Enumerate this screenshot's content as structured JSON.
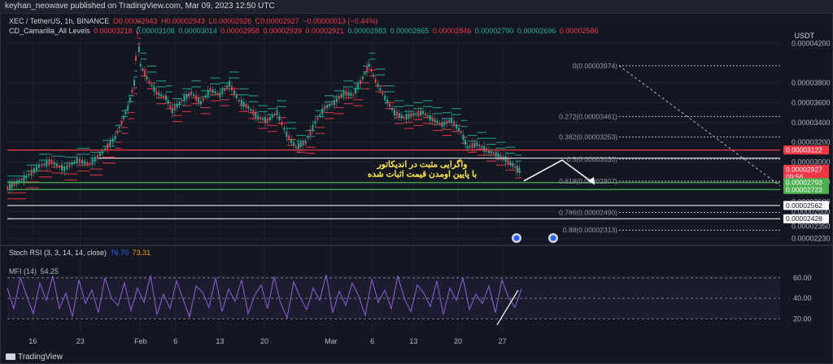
{
  "header": {
    "publish_line": "keyhan_neowave published on TradingView.com, Mar 09, 2023 12:50 UTC"
  },
  "symbol_legend": {
    "title": "XEC / TetherUS, 1h, BINANCE",
    "open_label": "O",
    "open": "0.00002943",
    "high_label": "H",
    "high": "0.00002943",
    "low_label": "L",
    "low": "0.00002926",
    "close_label": "C",
    "close": "0.00002927",
    "change": "−0.00000013 (−0.44%)"
  },
  "indicator_legend": {
    "name": "CD_Camarilla_All Levels",
    "values": [
      "0.00003218",
      "0.00003108",
      "0.00003014",
      "0.00002958",
      "0.00002939",
      "0.00002921",
      "0.00002883",
      "0.00002865",
      "0.00002846",
      "0.00002790",
      "0.00002696",
      "0.00002586"
    ]
  },
  "currency": "USDT",
  "annotation_text": [
    "واگرایی مثبت در اندیکاتور",
    "با پایین اومدن قیمت اثبات شده"
  ],
  "rsi_legend": {
    "name": "Stoch RSI (3, 3, 14, 14, close)",
    "k": "76.70",
    "d": "73.31"
  },
  "mfi_legend": {
    "name": "MFI (14)",
    "value": "54.25"
  },
  "footer_logo": "TradingView",
  "colors": {
    "background": "#131722",
    "up": "#22ab94",
    "down": "#f23645",
    "rsi_line": "#7e57c2",
    "fib_line": "#b2b5be",
    "level_red": "#f23645",
    "level_green": "#4caf50",
    "annotation": "#ffeb3b"
  },
  "chart_data": [
    {
      "type": "line",
      "title": "XEC / TetherUS, 1h, BINANCE",
      "ylabel": "USDT",
      "ylim": [
        2.2e-05,
        4.35e-05
      ],
      "x_ticks": [
        "16",
        "23",
        "Feb",
        "6",
        "13",
        "20",
        "Mar",
        "6",
        "13",
        "20",
        "27"
      ],
      "y_ticks": [
        "0.00004200",
        "0.00003800",
        "0.00003600",
        "0.00003400",
        "0.00003200",
        "0.00003000",
        "0.00002800",
        "0.00002600",
        "0.00002500",
        "0.00002350",
        "0.00002230"
      ],
      "price_labels": [
        {
          "value": "0.00003122",
          "style": "red"
        },
        {
          "value": "0.00002927",
          "style": "red",
          "sub": "09:56"
        },
        {
          "value": "0.00002793",
          "style": "green"
        },
        {
          "value": "0.00002723",
          "style": "green"
        },
        {
          "value": "0.00002562",
          "style": "white"
        },
        {
          "value": "0.00002428",
          "style": "white"
        }
      ],
      "fib_levels": [
        {
          "label": "0(0.00003974)",
          "y": 3.974e-05
        },
        {
          "label": "0.272(0.00003461)",
          "y": 3.461e-05
        },
        {
          "label": "0.382(0.00003253)",
          "y": 3.253e-05
        },
        {
          "label": "0.5(0.00003030)",
          "y": 3.03e-05
        },
        {
          "label": "0.618(0.00002807)",
          "y": 2.807e-05
        },
        {
          "label": "0.786(0.00002490)",
          "y": 2.49e-05
        },
        {
          "label": "0.88(0.00002313)",
          "y": 2.313e-05
        }
      ],
      "horizontal_levels": [
        {
          "y": 3.122e-05,
          "color": "red"
        },
        {
          "y": 3.04e-05,
          "color": "white"
        },
        {
          "y": 2.793e-05,
          "color": "green"
        },
        {
          "y": 2.723e-05,
          "color": "green"
        },
        {
          "y": 2.562e-05,
          "color": "white"
        },
        {
          "y": 2.428e-05,
          "color": "white"
        }
      ],
      "price_path": [
        [
          0,
          2.74e-05
        ],
        [
          6,
          2.85e-05
        ],
        [
          10,
          2.96e-05
        ],
        [
          14,
          3e-05
        ],
        [
          18,
          2.93e-05
        ],
        [
          22,
          3.02e-05
        ],
        [
          26,
          2.98e-05
        ],
        [
          30,
          3.1e-05
        ],
        [
          34,
          3.25e-05
        ],
        [
          36,
          3.4e-05
        ],
        [
          38,
          3.55e-05
        ],
        [
          40,
          3.8e-05
        ],
        [
          41,
          4.3e-05
        ],
        [
          42,
          3.98e-05
        ],
        [
          44,
          3.85e-05
        ],
        [
          47,
          3.7e-05
        ],
        [
          50,
          3.65e-05
        ],
        [
          52,
          3.52e-05
        ],
        [
          55,
          3.62e-05
        ],
        [
          58,
          3.7e-05
        ],
        [
          61,
          3.6e-05
        ],
        [
          64,
          3.73e-05
        ],
        [
          67,
          3.68e-05
        ],
        [
          70,
          3.79e-05
        ],
        [
          73,
          3.62e-05
        ],
        [
          76,
          3.55e-05
        ],
        [
          79,
          3.45e-05
        ],
        [
          82,
          3.42e-05
        ],
        [
          85,
          3.5e-05
        ],
        [
          88,
          3.28e-05
        ],
        [
          91,
          3.15e-05
        ],
        [
          94,
          3.2e-05
        ],
        [
          97,
          3.4e-05
        ],
        [
          100,
          3.55e-05
        ],
        [
          103,
          3.6e-05
        ],
        [
          106,
          3.7e-05
        ],
        [
          109,
          3.68e-05
        ],
        [
          112,
          3.85e-05
        ],
        [
          114,
          3.98e-05
        ],
        [
          116,
          3.82e-05
        ],
        [
          119,
          3.65e-05
        ],
        [
          122,
          3.5e-05
        ],
        [
          125,
          3.45e-05
        ],
        [
          128,
          3.48e-05
        ],
        [
          131,
          3.5e-05
        ],
        [
          134,
          3.43e-05
        ],
        [
          137,
          3.38e-05
        ],
        [
          140,
          3.42e-05
        ],
        [
          143,
          3.3e-05
        ],
        [
          145,
          3.15e-05
        ],
        [
          148,
          3.18e-05
        ],
        [
          151,
          3.12e-05
        ],
        [
          154,
          3.08e-05
        ],
        [
          157,
          3.03e-05
        ],
        [
          160,
          2.95e-05
        ],
        [
          162,
          2.9e-05
        ]
      ],
      "x_range": [
        0,
        162
      ],
      "x_tick_positions": [
        8,
        23,
        42,
        53,
        67,
        81,
        102,
        115,
        128,
        142,
        156
      ]
    },
    {
      "type": "line",
      "title": "Stoch RSI (3, 3, 14, 14, close)",
      "ylim": [
        10,
        75
      ],
      "y_ticks": [
        "60.00",
        "40.00",
        "20.00"
      ],
      "series": [
        {
          "name": "MFI (14)",
          "values": [
            50,
            30,
            60,
            42,
            25,
            55,
            38,
            62,
            30,
            45,
            22,
            58,
            35,
            48,
            26,
            60,
            40,
            33,
            55,
            28,
            50,
            36,
            62,
            24,
            44,
            30,
            57,
            39,
            22,
            52,
            46,
            31,
            60,
            27,
            49,
            37,
            58,
            25,
            43,
            53,
            30,
            61,
            35,
            21,
            56,
            41,
            29,
            50,
            38,
            63,
            26,
            47,
            33,
            55,
            42,
            23,
            59,
            36,
            48,
            30,
            62,
            40,
            27,
            53,
            45,
            32,
            57,
            24,
            50,
            38,
            60,
            29,
            44,
            35,
            52,
            26,
            58,
            41,
            31,
            49
          ]
        }
      ],
      "trend_line": [
        [
          0.59,
          14
        ],
        [
          0.625,
          48
        ]
      ]
    }
  ]
}
